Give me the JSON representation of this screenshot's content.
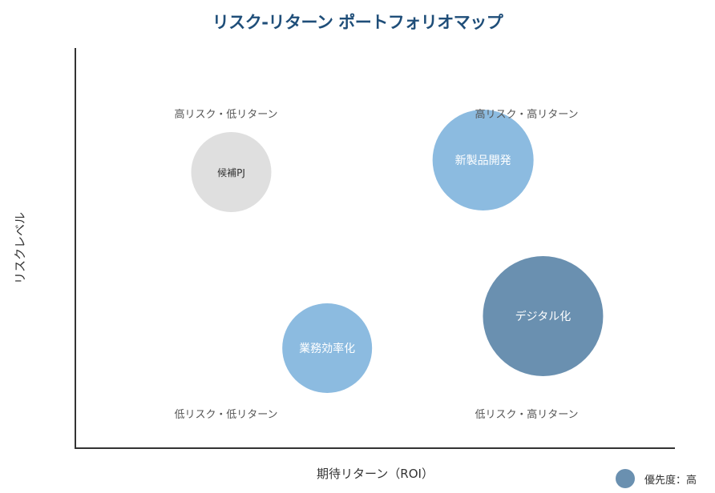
{
  "chart_data": {
    "type": "bubble",
    "title": "リスク-リターン ポートフォリオマップ",
    "xlabel": "期待リターン（ROI）",
    "ylabel": "リスクレベル",
    "quadrants": {
      "top_left": "高リスク・低リターン",
      "top_right": "高リスク・高リターン",
      "bottom_left": "低リスク・低リターン",
      "bottom_right": "低リスク・高リターン"
    },
    "series": [
      {
        "label": "候補PJ",
        "x": 2.6,
        "y": 6.9,
        "size": 50,
        "color": "#dfdfdf",
        "text_color": "#333333"
      },
      {
        "label": "新製品開発",
        "x": 6.8,
        "y": 7.2,
        "size": 63,
        "color": "#8cbbe0",
        "text_color": "#ffffff"
      },
      {
        "label": "デジタル化",
        "x": 7.8,
        "y": 3.3,
        "size": 75,
        "color": "#6a90b0",
        "text_color": "#ffffff"
      },
      {
        "label": "業務効率化",
        "x": 4.2,
        "y": 2.5,
        "size": 56,
        "color": "#8cbbe0",
        "text_color": "#ffffff"
      }
    ],
    "xlim": [
      0,
      10
    ],
    "ylim": [
      0,
      10
    ],
    "legend": {
      "label": "優先度：高",
      "color": "#6a90b0",
      "position": "bottom-right"
    }
  }
}
